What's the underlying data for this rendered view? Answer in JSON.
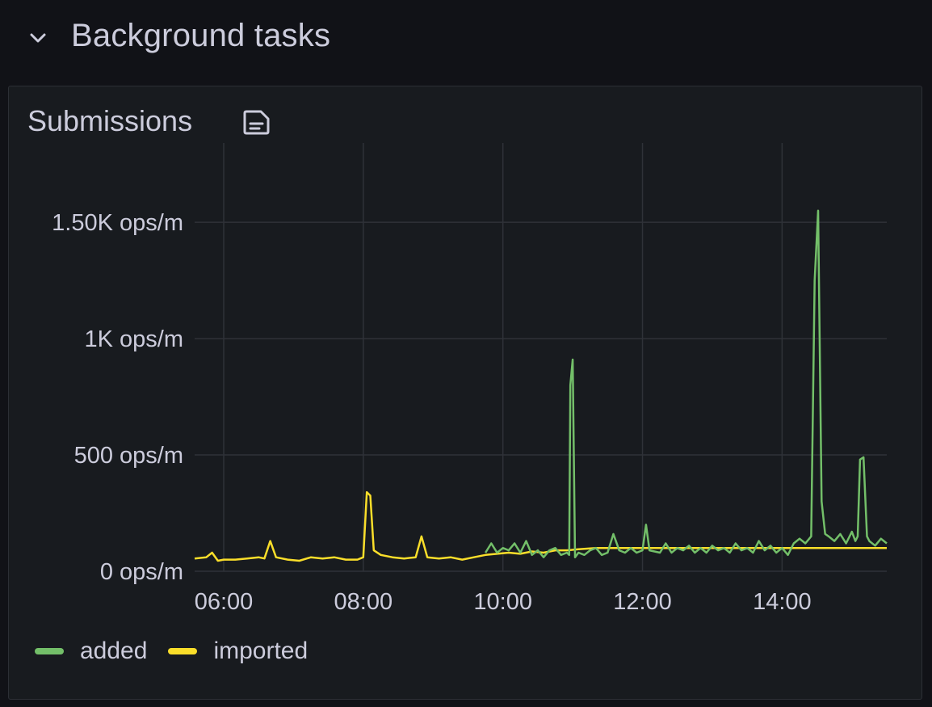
{
  "row": {
    "title": "Background tasks",
    "collapse_icon": "chevron-down-icon"
  },
  "panel": {
    "title": "Submissions",
    "info_icon": "panel-description-icon"
  },
  "legend": [
    {
      "label": "added",
      "color": "#73bf69"
    },
    {
      "label": "imported",
      "color": "#fade2a"
    }
  ],
  "chart_data": {
    "type": "line",
    "title": "Submissions",
    "xlabel": "",
    "ylabel": "",
    "unit": "ops/m",
    "x_range": [
      "05:35",
      "15:30"
    ],
    "ylim": [
      0,
      1650
    ],
    "y_ticks": [
      0,
      500,
      1000,
      1500
    ],
    "y_tick_labels": [
      "0 ops/m",
      "500 ops/m",
      "1K ops/m",
      "1.50K ops/m"
    ],
    "x_tick_labels": [
      "06:00",
      "08:00",
      "10:00",
      "12:00",
      "14:00"
    ],
    "grid": true,
    "legend_position": "bottom-left",
    "series": [
      {
        "name": "imported",
        "color": "#fade2a",
        "points": [
          [
            "05:35",
            55
          ],
          [
            "05:45",
            60
          ],
          [
            "05:50",
            80
          ],
          [
            "05:55",
            45
          ],
          [
            "06:00",
            50
          ],
          [
            "06:10",
            50
          ],
          [
            "06:20",
            55
          ],
          [
            "06:30",
            60
          ],
          [
            "06:35",
            55
          ],
          [
            "06:40",
            130
          ],
          [
            "06:45",
            60
          ],
          [
            "06:55",
            50
          ],
          [
            "07:05",
            45
          ],
          [
            "07:15",
            60
          ],
          [
            "07:25",
            55
          ],
          [
            "07:35",
            60
          ],
          [
            "07:45",
            50
          ],
          [
            "07:55",
            50
          ],
          [
            "08:00",
            60
          ],
          [
            "08:03",
            340
          ],
          [
            "08:06",
            325
          ],
          [
            "08:09",
            90
          ],
          [
            "08:15",
            70
          ],
          [
            "08:25",
            60
          ],
          [
            "08:35",
            55
          ],
          [
            "08:45",
            60
          ],
          [
            "08:50",
            150
          ],
          [
            "08:55",
            60
          ],
          [
            "09:05",
            55
          ],
          [
            "09:15",
            60
          ],
          [
            "09:25",
            50
          ],
          [
            "09:35",
            60
          ],
          [
            "09:45",
            70
          ],
          [
            "09:55",
            75
          ],
          [
            "10:05",
            80
          ],
          [
            "10:15",
            75
          ],
          [
            "10:25",
            85
          ],
          [
            "10:35",
            80
          ],
          [
            "10:45",
            90
          ],
          [
            "10:55",
            90
          ],
          [
            "11:05",
            95
          ],
          [
            "11:20",
            100
          ],
          [
            "11:40",
            100
          ],
          [
            "12:00",
            100
          ],
          [
            "12:30",
            100
          ],
          [
            "13:00",
            100
          ],
          [
            "13:30",
            100
          ],
          [
            "14:00",
            100
          ],
          [
            "14:30",
            100
          ],
          [
            "15:00",
            100
          ],
          [
            "15:30",
            100
          ]
        ]
      },
      {
        "name": "added",
        "color": "#73bf69",
        "points": [
          [
            "09:45",
            80
          ],
          [
            "09:50",
            120
          ],
          [
            "09:55",
            80
          ],
          [
            "10:00",
            100
          ],
          [
            "10:05",
            90
          ],
          [
            "10:10",
            120
          ],
          [
            "10:15",
            80
          ],
          [
            "10:20",
            130
          ],
          [
            "10:25",
            70
          ],
          [
            "10:30",
            90
          ],
          [
            "10:35",
            60
          ],
          [
            "10:40",
            90
          ],
          [
            "10:45",
            100
          ],
          [
            "10:50",
            70
          ],
          [
            "10:55",
            80
          ],
          [
            "10:57",
            70
          ],
          [
            "10:58",
            800
          ],
          [
            "11:00",
            910
          ],
          [
            "11:02",
            60
          ],
          [
            "11:05",
            80
          ],
          [
            "11:10",
            70
          ],
          [
            "11:15",
            90
          ],
          [
            "11:20",
            100
          ],
          [
            "11:25",
            70
          ],
          [
            "11:30",
            80
          ],
          [
            "11:35",
            160
          ],
          [
            "11:40",
            90
          ],
          [
            "11:45",
            80
          ],
          [
            "11:50",
            100
          ],
          [
            "11:55",
            80
          ],
          [
            "12:00",
            90
          ],
          [
            "12:03",
            200
          ],
          [
            "12:06",
            90
          ],
          [
            "12:15",
            80
          ],
          [
            "12:20",
            120
          ],
          [
            "12:25",
            80
          ],
          [
            "12:30",
            100
          ],
          [
            "12:35",
            90
          ],
          [
            "12:40",
            110
          ],
          [
            "12:45",
            80
          ],
          [
            "12:50",
            100
          ],
          [
            "12:55",
            80
          ],
          [
            "13:00",
            110
          ],
          [
            "13:05",
            90
          ],
          [
            "13:10",
            100
          ],
          [
            "13:15",
            80
          ],
          [
            "13:20",
            120
          ],
          [
            "13:25",
            90
          ],
          [
            "13:30",
            100
          ],
          [
            "13:35",
            80
          ],
          [
            "13:40",
            130
          ],
          [
            "13:45",
            90
          ],
          [
            "13:50",
            110
          ],
          [
            "13:55",
            80
          ],
          [
            "14:00",
            100
          ],
          [
            "14:05",
            70
          ],
          [
            "14:10",
            120
          ],
          [
            "14:15",
            140
          ],
          [
            "14:20",
            120
          ],
          [
            "14:25",
            150
          ],
          [
            "14:28",
            1250
          ],
          [
            "14:31",
            1550
          ],
          [
            "14:34",
            300
          ],
          [
            "14:37",
            160
          ],
          [
            "14:40",
            150
          ],
          [
            "14:45",
            130
          ],
          [
            "14:50",
            160
          ],
          [
            "14:55",
            120
          ],
          [
            "15:00",
            170
          ],
          [
            "15:03",
            130
          ],
          [
            "15:05",
            150
          ],
          [
            "15:07",
            480
          ],
          [
            "15:10",
            490
          ],
          [
            "15:13",
            150
          ],
          [
            "15:15",
            130
          ],
          [
            "15:20",
            110
          ],
          [
            "15:25",
            140
          ],
          [
            "15:30",
            120
          ]
        ]
      }
    ]
  }
}
